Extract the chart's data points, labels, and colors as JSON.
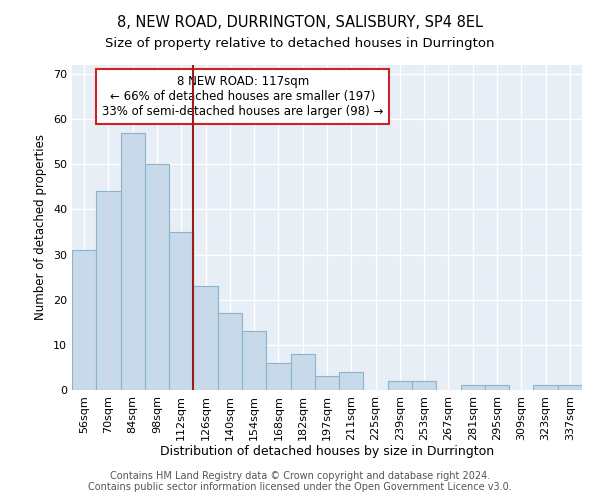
{
  "title": "8, NEW ROAD, DURRINGTON, SALISBURY, SP4 8EL",
  "subtitle": "Size of property relative to detached houses in Durrington",
  "xlabel": "Distribution of detached houses by size in Durrington",
  "ylabel": "Number of detached properties",
  "categories": [
    "56sqm",
    "70sqm",
    "84sqm",
    "98sqm",
    "112sqm",
    "126sqm",
    "140sqm",
    "154sqm",
    "168sqm",
    "182sqm",
    "197sqm",
    "211sqm",
    "225sqm",
    "239sqm",
    "253sqm",
    "267sqm",
    "281sqm",
    "295sqm",
    "309sqm",
    "323sqm",
    "337sqm"
  ],
  "values": [
    31,
    44,
    57,
    50,
    35,
    23,
    17,
    13,
    6,
    8,
    3,
    4,
    0,
    2,
    2,
    0,
    1,
    1,
    0,
    1,
    1
  ],
  "bar_color": "#c8daea",
  "bar_edge_color": "#8ab4cc",
  "vline_x": 4.5,
  "vline_color": "#9b1c1c",
  "annotation_text": "8 NEW ROAD: 117sqm\n← 66% of detached houses are smaller (197)\n33% of semi-detached houses are larger (98) →",
  "annotation_box_color": "white",
  "annotation_box_edge": "#cc2222",
  "ylim": [
    0,
    72
  ],
  "yticks": [
    0,
    10,
    20,
    30,
    40,
    50,
    60,
    70
  ],
  "background_color": "#e8eef5",
  "grid_color": "#d0d8e4",
  "footer": "Contains HM Land Registry data © Crown copyright and database right 2024.\nContains public sector information licensed under the Open Government Licence v3.0.",
  "title_fontsize": 10.5,
  "subtitle_fontsize": 9.5,
  "xlabel_fontsize": 9,
  "ylabel_fontsize": 8.5,
  "tick_fontsize": 8,
  "annotation_fontsize": 8.5,
  "footer_fontsize": 7
}
